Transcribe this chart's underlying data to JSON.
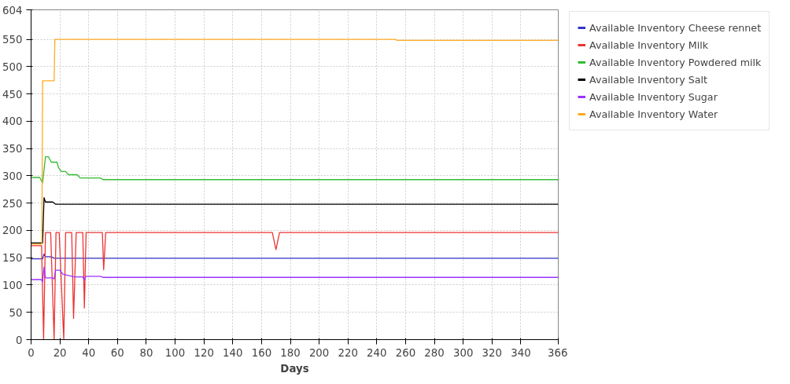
{
  "chart_data": {
    "type": "line",
    "xlabel": "Days",
    "xlim": [
      0,
      366
    ],
    "ylim": [
      0,
      604
    ],
    "xticks": [
      0,
      20,
      40,
      60,
      80,
      100,
      120,
      140,
      160,
      180,
      200,
      220,
      240,
      260,
      280,
      300,
      320,
      340,
      366
    ],
    "yticks": [
      0,
      50,
      100,
      150,
      200,
      250,
      300,
      350,
      400,
      450,
      500,
      550,
      604
    ],
    "grid": true,
    "legend": "right",
    "line_style": "solid",
    "marker": "none",
    "series": [
      {
        "name": "Available Inventory Cheese rennet",
        "color": "#3333cc",
        "x": [
          0,
          8,
          9,
          10,
          14,
          16,
          366
        ],
        "values": [
          148,
          148,
          157,
          152,
          152,
          149,
          149
        ]
      },
      {
        "name": "Available Inventory Milk",
        "color": "#ee3333",
        "x": [
          0,
          7.3,
          8.7,
          10,
          13.6,
          16,
          17.3,
          19.5,
          22.7,
          24,
          28.2,
          29.5,
          31.3,
          35.9,
          37,
          38.2,
          49.5,
          50.4,
          51.8,
          167.5,
          170,
          172.5,
          366
        ],
        "values": [
          172,
          172,
          0,
          196,
          196,
          0,
          196,
          196,
          0,
          196,
          196,
          39,
          196,
          196,
          58,
          196,
          196,
          128,
          196,
          196,
          165,
          196,
          196
        ]
      },
      {
        "name": "Available Inventory Powdered milk",
        "color": "#33bb33",
        "x": [
          0,
          6,
          8,
          10,
          12,
          13,
          14,
          18,
          19,
          21,
          24,
          26,
          32,
          34,
          48,
          50,
          366
        ],
        "values": [
          297,
          297,
          287,
          335,
          335,
          330,
          325,
          325,
          315,
          308,
          308,
          302,
          302,
          296,
          296,
          293,
          293
        ]
      },
      {
        "name": "Available Inventory Salt",
        "color": "#000000",
        "x": [
          0,
          8,
          9,
          10,
          15,
          17,
          366
        ],
        "values": [
          177,
          177,
          260,
          252,
          252,
          248,
          248
        ]
      },
      {
        "name": "Available Inventory Sugar",
        "color": "#9933ff",
        "x": [
          0,
          7,
          8,
          9,
          10,
          15,
          16,
          17,
          20,
          22,
          25,
          30,
          36,
          37,
          38,
          48,
          50,
          366
        ],
        "values": [
          110,
          110,
          106,
          133,
          113,
          113,
          111,
          127,
          127,
          120,
          118,
          115,
          115,
          109,
          116,
          116,
          114,
          114
        ]
      },
      {
        "name": "Available Inventory Water",
        "color": "#ffaa22",
        "x": [
          0,
          7.5,
          8,
          16,
          16.5,
          253,
          254,
          366
        ],
        "values": [
          175,
          175,
          474,
          474,
          550,
          550,
          548,
          548
        ]
      }
    ]
  }
}
